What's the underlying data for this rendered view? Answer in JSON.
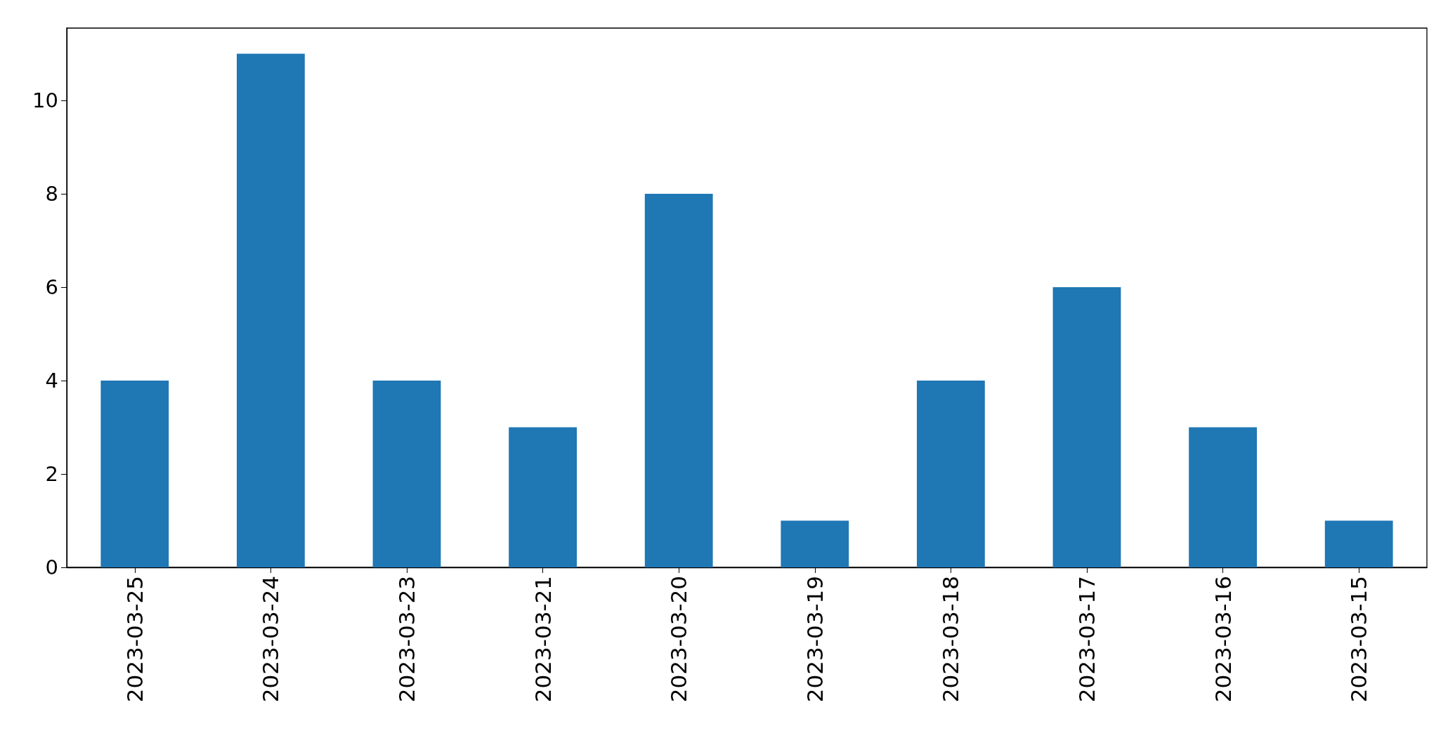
{
  "chart_data": {
    "type": "bar",
    "categories": [
      "2023-03-25",
      "2023-03-24",
      "2023-03-23",
      "2023-03-21",
      "2023-03-20",
      "2023-03-19",
      "2023-03-18",
      "2023-03-17",
      "2023-03-16",
      "2023-03-15"
    ],
    "values": [
      4,
      11,
      4,
      3,
      8,
      1,
      4,
      6,
      3,
      1
    ],
    "color": "#1f77b4",
    "ylim": [
      0,
      11.55
    ],
    "yticks": [
      0,
      2,
      4,
      6,
      8,
      10
    ],
    "grid": false
  }
}
